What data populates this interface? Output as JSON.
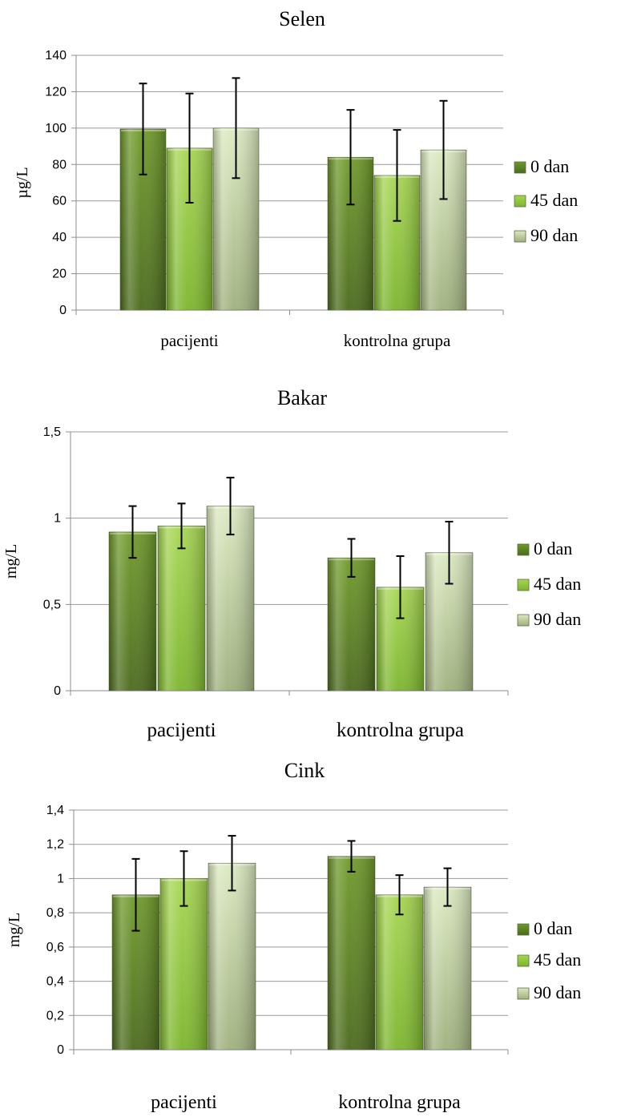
{
  "chart_data": [
    {
      "type": "bar",
      "title": "Selen",
      "ylabel": "µg/L",
      "xlabel": "",
      "ylim": [
        0,
        140
      ],
      "yticks": [
        "0",
        "20",
        "40",
        "60",
        "80",
        "100",
        "120",
        "140"
      ],
      "yticks_values": [
        0,
        20,
        40,
        60,
        80,
        100,
        120,
        140
      ],
      "categories": [
        "pacijenti",
        "kontrolna grupa"
      ],
      "series": [
        {
          "name": "0 dan",
          "values": [
            99.5,
            84
          ],
          "errors": [
            25,
            26
          ]
        },
        {
          "name": "45 dan",
          "values": [
            89,
            74
          ],
          "errors": [
            30,
            25
          ]
        },
        {
          "name": "90 dan",
          "values": [
            100,
            88
          ],
          "errors": [
            27.5,
            27
          ]
        }
      ],
      "grid": true,
      "legend_position": "right"
    },
    {
      "type": "bar",
      "title": "Bakar",
      "ylabel": "mg/L",
      "xlabel": "",
      "ylim": [
        0,
        1.5
      ],
      "yticks": [
        "0",
        "0,5",
        "1",
        "1,5"
      ],
      "yticks_values": [
        0,
        0.5,
        1,
        1.5
      ],
      "categories": [
        "pacijenti",
        "kontrolna grupa"
      ],
      "series": [
        {
          "name": "0 dan",
          "values": [
            0.92,
            0.77
          ],
          "errors": [
            0.15,
            0.11
          ]
        },
        {
          "name": "45 dan",
          "values": [
            0.955,
            0.6
          ],
          "errors": [
            0.13,
            0.18
          ]
        },
        {
          "name": "90 dan",
          "values": [
            1.07,
            0.8
          ],
          "errors": [
            0.165,
            0.18
          ]
        }
      ],
      "grid": true,
      "legend_position": "right"
    },
    {
      "type": "bar",
      "title": "Cink",
      "ylabel": "mg/L",
      "xlabel": "",
      "ylim": [
        0,
        1.4
      ],
      "yticks": [
        "0",
        "0,2",
        "0,4",
        "0,6",
        "0,8",
        "1",
        "1,2",
        "1,4"
      ],
      "yticks_values": [
        0,
        0.2,
        0.4,
        0.6,
        0.8,
        1.0,
        1.2,
        1.4
      ],
      "categories": [
        "pacijenti",
        "kontrolna grupa"
      ],
      "series": [
        {
          "name": "0 dan",
          "values": [
            0.905,
            1.13
          ],
          "errors": [
            0.21,
            0.09
          ]
        },
        {
          "name": "45 dan",
          "values": [
            1.0,
            0.905
          ],
          "errors": [
            0.16,
            0.115
          ]
        },
        {
          "name": "90 dan",
          "values": [
            1.09,
            0.95
          ],
          "errors": [
            0.16,
            0.11
          ]
        }
      ],
      "grid": true,
      "legend_position": "right"
    }
  ],
  "colors": {
    "series_0": [
      "#4f6a1d",
      "#7ea33a"
    ],
    "series_1": [
      "#79b829",
      "#b7e06a"
    ],
    "series_2": [
      "#a8b98a",
      "#e3efc8"
    ],
    "gridline": "#9a9a9a",
    "axis": "#8c8c8c",
    "errorbar": "#000000"
  }
}
